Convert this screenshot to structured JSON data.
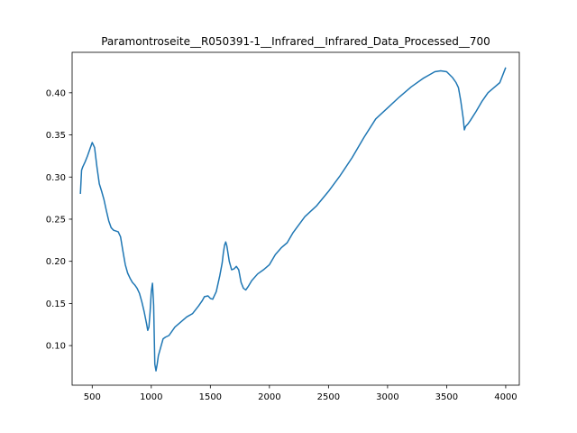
{
  "chart_data": {
    "type": "line",
    "title": "Paramontroseite__R050391-1__Infrared__Infrared_Data_Processed__700",
    "xlabel": "",
    "ylabel": "",
    "xlim": [
      330,
      4115
    ],
    "ylim": [
      0.053,
      0.448
    ],
    "x_ticks": [
      500,
      1000,
      1500,
      2000,
      2500,
      3000,
      3500,
      4000
    ],
    "y_ticks": [
      0.1,
      0.15,
      0.2,
      0.25,
      0.3,
      0.35,
      0.4
    ],
    "grid": false,
    "legend": "none",
    "series": [
      {
        "color": "#1f77b4",
        "x": [
          400,
          410,
          420,
          440,
          460,
          480,
          500,
          520,
          540,
          560,
          580,
          600,
          620,
          640,
          660,
          680,
          700,
          720,
          740,
          760,
          780,
          800,
          820,
          840,
          860,
          880,
          900,
          920,
          940,
          960,
          970,
          980,
          990,
          1000,
          1010,
          1020,
          1030,
          1040,
          1050,
          1060,
          1080,
          1100,
          1120,
          1150,
          1200,
          1250,
          1300,
          1350,
          1400,
          1430,
          1450,
          1480,
          1500,
          1520,
          1550,
          1580,
          1600,
          1610,
          1620,
          1630,
          1640,
          1660,
          1680,
          1700,
          1720,
          1740,
          1760,
          1780,
          1800,
          1820,
          1850,
          1900,
          1950,
          2000,
          2050,
          2100,
          2150,
          2200,
          2300,
          2400,
          2500,
          2600,
          2700,
          2800,
          2900,
          3000,
          3100,
          3200,
          3300,
          3350,
          3400,
          3450,
          3500,
          3550,
          3580,
          3600,
          3620,
          3640,
          3650,
          3660,
          3680,
          3700,
          3750,
          3800,
          3850,
          3900,
          3950,
          4000
        ],
        "y": [
          0.28,
          0.308,
          0.312,
          0.318,
          0.325,
          0.333,
          0.341,
          0.335,
          0.312,
          0.292,
          0.283,
          0.273,
          0.26,
          0.248,
          0.24,
          0.237,
          0.236,
          0.235,
          0.229,
          0.212,
          0.196,
          0.186,
          0.18,
          0.175,
          0.172,
          0.168,
          0.162,
          0.152,
          0.14,
          0.126,
          0.118,
          0.122,
          0.14,
          0.164,
          0.174,
          0.148,
          0.078,
          0.07,
          0.078,
          0.088,
          0.098,
          0.108,
          0.11,
          0.112,
          0.122,
          0.128,
          0.134,
          0.138,
          0.147,
          0.153,
          0.158,
          0.159,
          0.156,
          0.155,
          0.164,
          0.183,
          0.198,
          0.21,
          0.219,
          0.223,
          0.218,
          0.2,
          0.19,
          0.191,
          0.194,
          0.19,
          0.175,
          0.168,
          0.166,
          0.17,
          0.177,
          0.185,
          0.19,
          0.196,
          0.208,
          0.216,
          0.222,
          0.234,
          0.253,
          0.266,
          0.283,
          0.302,
          0.323,
          0.347,
          0.369,
          0.382,
          0.395,
          0.407,
          0.417,
          0.421,
          0.425,
          0.426,
          0.425,
          0.418,
          0.412,
          0.406,
          0.39,
          0.37,
          0.356,
          0.36,
          0.363,
          0.367,
          0.378,
          0.39,
          0.4,
          0.406,
          0.412,
          0.43
        ]
      }
    ]
  }
}
